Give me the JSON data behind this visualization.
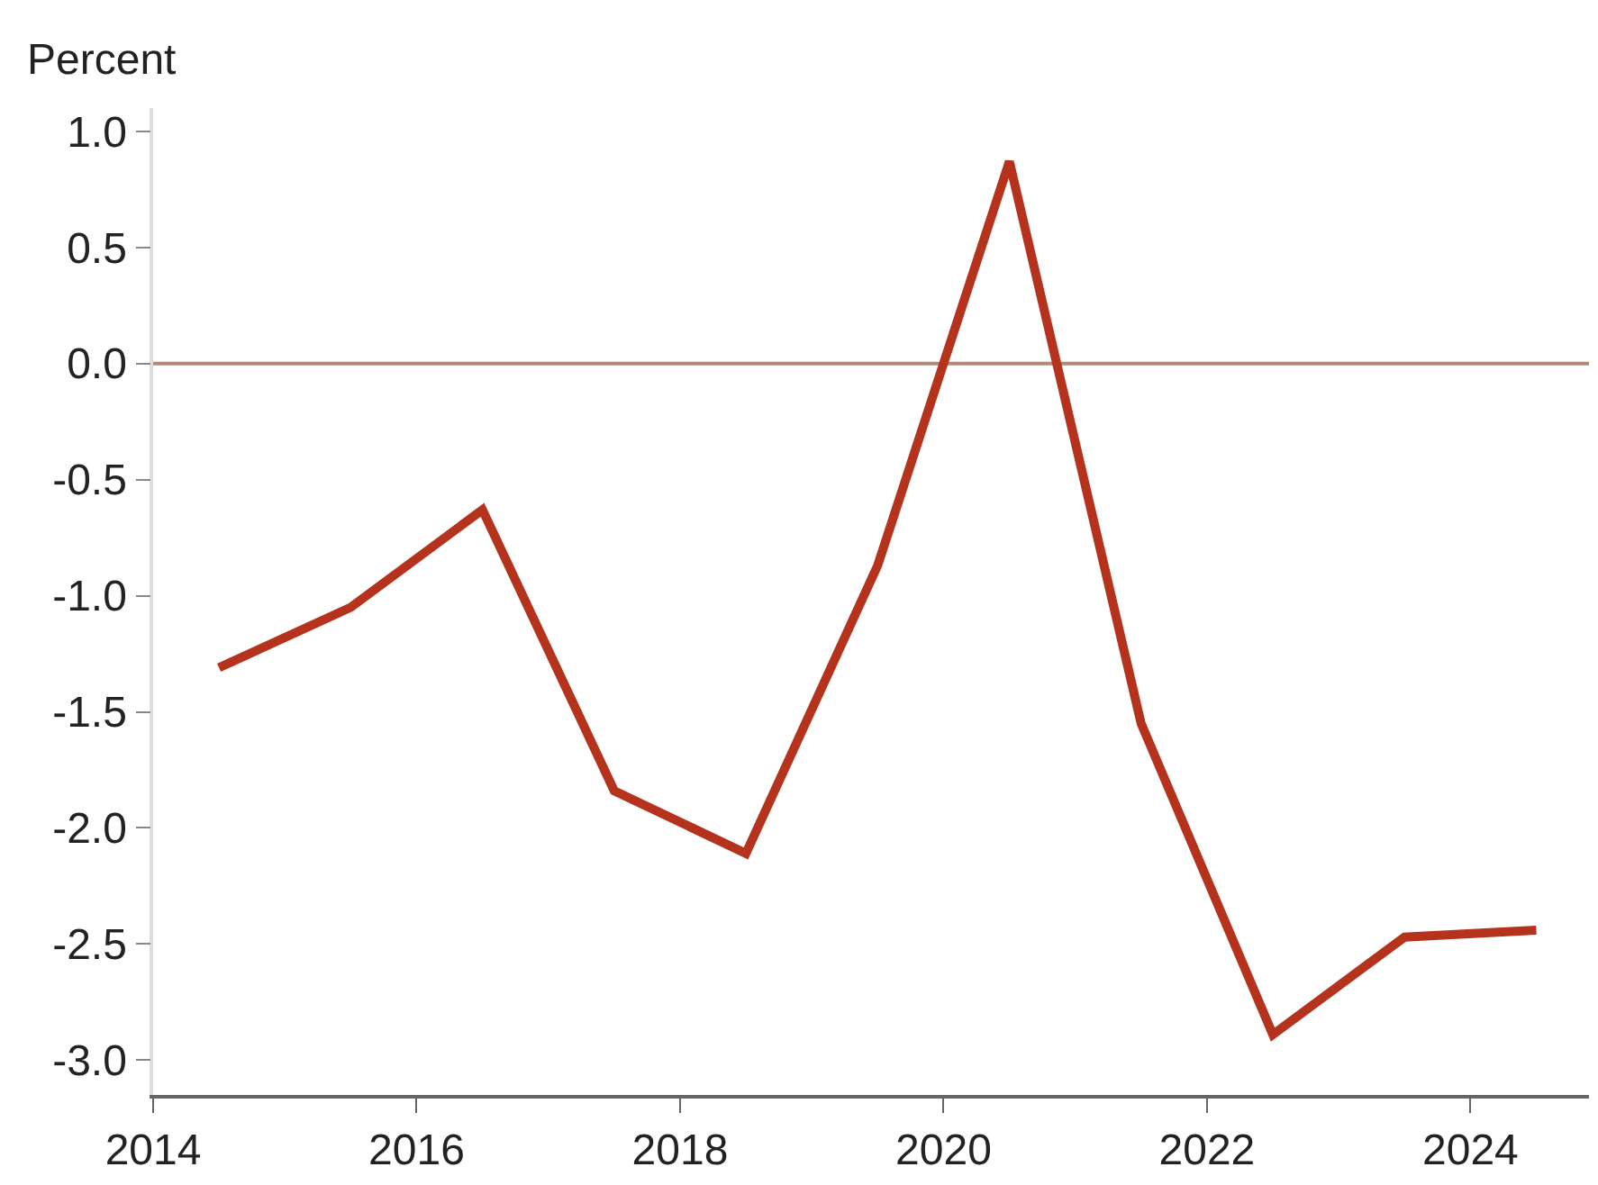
{
  "chart_data": {
    "type": "line",
    "ylabel": "Percent",
    "x": [
      2014.5,
      2015.5,
      2016.5,
      2017.5,
      2018.5,
      2019.5,
      2020.5,
      2021.5,
      2022.5,
      2023.5,
      2024.5
    ],
    "series": [
      {
        "color": "#b5331c",
        "values": [
          -1.31,
          -1.05,
          -0.63,
          -1.84,
          -2.11,
          -0.87,
          0.87,
          -1.55,
          -2.89,
          -2.47,
          -2.44
        ]
      }
    ],
    "xlim": [
      2014,
      2024.9
    ],
    "xticks": [
      2014,
      2016,
      2018,
      2020,
      2022,
      2024
    ],
    "ylim": [
      -3.15,
      1.1
    ],
    "yticks": [
      {
        "value": 1,
        "label": "1.0"
      },
      {
        "value": 0.5,
        "label": "0.5"
      },
      {
        "value": 0,
        "label": "0.0"
      },
      {
        "value": -0.5,
        "label": "-0.5"
      },
      {
        "value": -1,
        "label": "-1.0"
      },
      {
        "value": -1.5,
        "label": "-1.5"
      },
      {
        "value": -2,
        "label": "-2.0"
      },
      {
        "value": -2.5,
        "label": "-2.5"
      },
      {
        "value": -3,
        "label": "-3.0"
      }
    ],
    "ref_lines": [
      {
        "axis": "y",
        "value": 0,
        "color": "#b08a78"
      }
    ],
    "grid": false,
    "marker": "none",
    "line_style": "solid"
  }
}
